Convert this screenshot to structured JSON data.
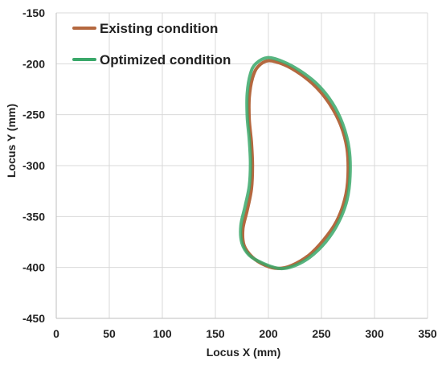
{
  "chart_data": {
    "type": "line",
    "title": "",
    "xlabel": "Locus X (mm)",
    "ylabel": "Locus Y (mm)",
    "xlim": [
      0,
      350
    ],
    "ylim": [
      -450,
      -150
    ],
    "x_ticks": [
      0,
      50,
      100,
      150,
      200,
      250,
      300,
      350
    ],
    "y_ticks": [
      -150,
      -200,
      -250,
      -300,
      -350,
      -400,
      -450
    ],
    "grid": true,
    "legend_position": "top-left",
    "series": [
      {
        "name": "Existing condition",
        "color": "#b4683f",
        "points": [
          [
            200,
            -197
          ],
          [
            215,
            -201
          ],
          [
            230,
            -210
          ],
          [
            245,
            -223
          ],
          [
            258,
            -240
          ],
          [
            268,
            -260
          ],
          [
            274,
            -283
          ],
          [
            275,
            -310
          ],
          [
            272,
            -333
          ],
          [
            264,
            -355
          ],
          [
            252,
            -373
          ],
          [
            238,
            -388
          ],
          [
            222,
            -398
          ],
          [
            209,
            -401
          ],
          [
            197,
            -398
          ],
          [
            185,
            -390
          ],
          [
            177,
            -378
          ],
          [
            176,
            -362
          ],
          [
            180,
            -344
          ],
          [
            184,
            -323
          ],
          [
            185,
            -300
          ],
          [
            184,
            -277
          ],
          [
            182,
            -255
          ],
          [
            182,
            -233
          ],
          [
            185,
            -214
          ],
          [
            190,
            -203
          ],
          [
            200,
            -197
          ]
        ]
      },
      {
        "name": "Optimized condition",
        "color": "#3aa86a",
        "points": [
          [
            199,
            -194
          ],
          [
            214,
            -198
          ],
          [
            230,
            -207
          ],
          [
            246,
            -220
          ],
          [
            260,
            -238
          ],
          [
            270,
            -259
          ],
          [
            276,
            -283
          ],
          [
            277,
            -310
          ],
          [
            274,
            -334
          ],
          [
            266,
            -356
          ],
          [
            254,
            -375
          ],
          [
            239,
            -390
          ],
          [
            223,
            -399
          ],
          [
            210,
            -401
          ],
          [
            195,
            -396
          ],
          [
            182,
            -388
          ],
          [
            175,
            -376
          ],
          [
            174,
            -359
          ],
          [
            178,
            -340
          ],
          [
            182,
            -320
          ],
          [
            183,
            -298
          ],
          [
            182,
            -275
          ],
          [
            180,
            -252
          ],
          [
            180,
            -229
          ],
          [
            183,
            -210
          ],
          [
            188,
            -200
          ],
          [
            199,
            -194
          ]
        ]
      }
    ]
  }
}
